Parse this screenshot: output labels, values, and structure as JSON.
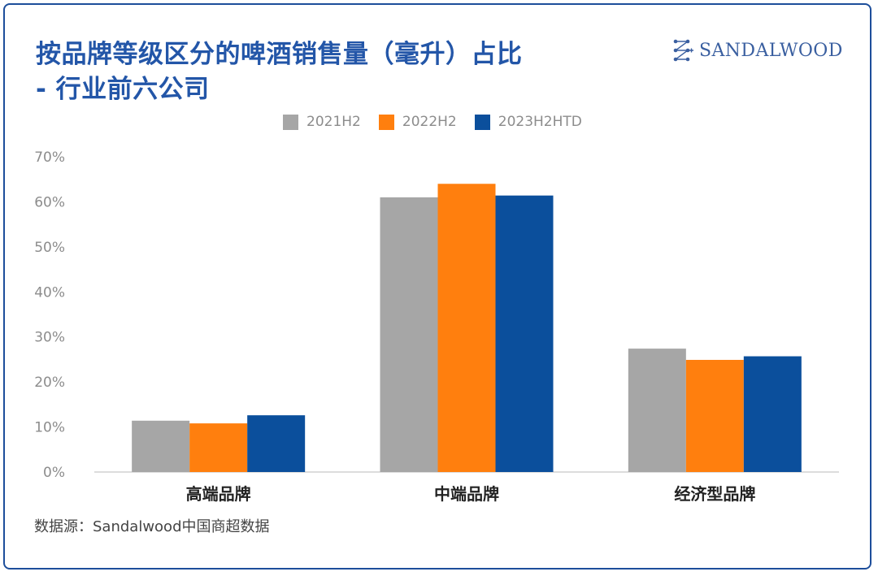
{
  "chart_data": {
    "type": "bar",
    "title_lines": [
      "按品牌等级区分的啤酒销售量（毫升）占比",
      "- 行业前六公司"
    ],
    "categories": [
      "高端品牌",
      "中端品牌",
      "经济型品牌"
    ],
    "series": [
      {
        "name": "2021H2",
        "color": "#a6a6a6",
        "values": [
          11.4,
          61.0,
          27.4
        ]
      },
      {
        "name": "2022H2",
        "color": "#ff7f0e",
        "values": [
          10.8,
          64.0,
          24.9
        ]
      },
      {
        "name": "2023H2HTD",
        "color": "#0b4f9c",
        "values": [
          12.6,
          61.4,
          25.7
        ]
      }
    ],
    "yticks": [
      "0%",
      "10%",
      "20%",
      "30%",
      "40%",
      "50%",
      "60%",
      "70%"
    ],
    "ylim": [
      0,
      70
    ],
    "xlabel": "",
    "ylabel": "",
    "grid": false,
    "legend_position": "top"
  },
  "brand": {
    "name": "SANDALWOOD",
    "logo_icon": "sandalwood-logo-icon"
  },
  "source_text": "数据源：Sandalwood中国商超数据"
}
